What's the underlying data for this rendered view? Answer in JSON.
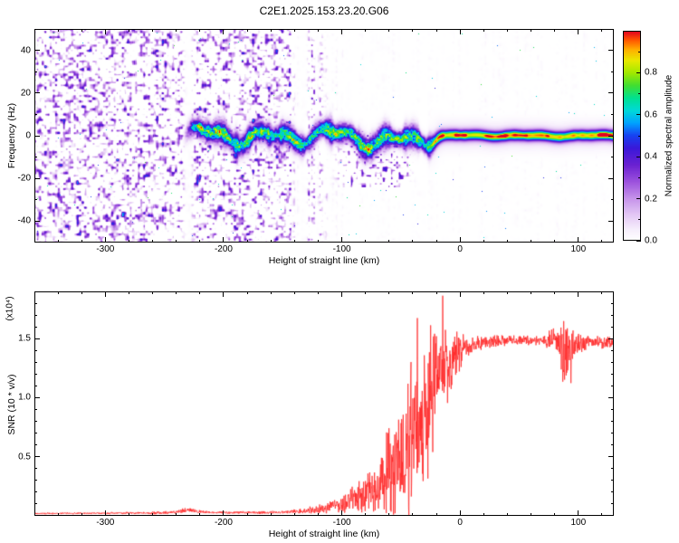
{
  "colors": {
    "background": "#ffffff",
    "frame": "#000000",
    "snr_line": "#ff2a2a",
    "colormap_stops": [
      [
        0.0,
        "#ffffff"
      ],
      [
        0.05,
        "#f7effc"
      ],
      [
        0.12,
        "#e4c9f5"
      ],
      [
        0.2,
        "#c693ea"
      ],
      [
        0.28,
        "#9c51dd"
      ],
      [
        0.36,
        "#6b21d1"
      ],
      [
        0.44,
        "#3a18d9"
      ],
      [
        0.5,
        "#1841f1"
      ],
      [
        0.56,
        "#00a1ff"
      ],
      [
        0.62,
        "#00d9d9"
      ],
      [
        0.68,
        "#00e191"
      ],
      [
        0.74,
        "#41de31"
      ],
      [
        0.8,
        "#a1e900"
      ],
      [
        0.86,
        "#e9e900"
      ],
      [
        0.91,
        "#ffb100"
      ],
      [
        0.96,
        "#ff5100"
      ],
      [
        1.0,
        "#e10021"
      ]
    ]
  },
  "chart_data": [
    {
      "type": "heatmap",
      "title": "C2E1.2025.153.23.20.G06",
      "xlabel": "Height of straight line (km)",
      "ylabel": "Frequency (Hz)",
      "xlim": [
        -360,
        130
      ],
      "ylim": [
        -50,
        50
      ],
      "xticks": [
        -300,
        -200,
        -100,
        0,
        100
      ],
      "xtick_labels": [
        "-300",
        "-200",
        "-100",
        "0",
        "100"
      ],
      "xminor_step": 20,
      "yticks": [
        -40,
        -20,
        0,
        20,
        40
      ],
      "ytick_labels": [
        "-40",
        "-20",
        "0",
        "20",
        "40"
      ],
      "yminor_step": 10,
      "colorbar": {
        "label": "Normalized spectral amplitude",
        "range": [
          0,
          1
        ],
        "ticks": [
          0,
          0.2,
          0.4,
          0.6,
          0.8
        ],
        "tick_labels": [
          "0.0",
          "0.2",
          "0.4",
          "0.6",
          "0.8"
        ],
        "minor_step": 0.1
      },
      "content": {
        "description": "Dense purple speckle noise fills the panel left of about -100 km, fading out between -145 and -95 km with pale vertical gaps near -230 and -133 km. A coherent carrier near 0 Hz appears from about -236 km: blobby cyan/green/blue with red flecks and +/-5 Hz wiggle until about -30 km, then a thin bright green band with intermittent red core and a faint purple halo out to +130 km. Sparse speckle trails below the carrier between -110 and -40 km.",
        "noise_fade_km": [
          -145,
          -95
        ],
        "gaps_km": [
          [
            -232,
            -228
          ],
          [
            -137,
            -130
          ]
        ],
        "signal_start_km": -236,
        "signal_smooth_from_km": -30,
        "signal_center_hz": 0,
        "signal_wiggle_hz": 5,
        "trail_region": {
          "x_km": [
            -112,
            -36
          ],
          "f_hz": [
            -24,
            2
          ]
        }
      }
    },
    {
      "type": "line",
      "xlabel": "Height of straight line (km)",
      "ylabel": "SNR (10 * v/v)",
      "y_scale_note": "(x10⁴)",
      "xlim": [
        -360,
        130
      ],
      "ylim": [
        0,
        1.9
      ],
      "xticks": [
        -300,
        -200,
        -100,
        0,
        100
      ],
      "xtick_labels": [
        "-300",
        "-200",
        "-100",
        "0",
        "100"
      ],
      "xminor_step": 20,
      "yticks": [
        0.5,
        1.0,
        1.5
      ],
      "ytick_labels": [
        "0.5",
        "1.0",
        "1.5"
      ],
      "yminor_step": 0.1,
      "series": [
        {
          "name": "SNR",
          "color": "#ff2a2a",
          "anchors": [
            [
              -360,
              0.02,
              0.008
            ],
            [
              -300,
              0.022,
              0.008
            ],
            [
              -260,
              0.025,
              0.01
            ],
            [
              -240,
              0.03,
              0.015
            ],
            [
              -230,
              0.05,
              0.025
            ],
            [
              -222,
              0.035,
              0.015
            ],
            [
              -210,
              0.028,
              0.01
            ],
            [
              -180,
              0.028,
              0.01
            ],
            [
              -150,
              0.03,
              0.012
            ],
            [
              -135,
              0.04,
              0.02
            ],
            [
              -125,
              0.05,
              0.03
            ],
            [
              -115,
              0.06,
              0.04
            ],
            [
              -105,
              0.09,
              0.06
            ],
            [
              -95,
              0.12,
              0.09
            ],
            [
              -85,
              0.16,
              0.13
            ],
            [
              -75,
              0.22,
              0.18
            ],
            [
              -65,
              0.3,
              0.28
            ],
            [
              -55,
              0.42,
              0.38
            ],
            [
              -48,
              0.5,
              0.45
            ],
            [
              -40,
              0.6,
              0.55
            ],
            [
              -33,
              0.75,
              0.6
            ],
            [
              -25,
              0.95,
              0.55
            ],
            [
              -18,
              1.15,
              0.45
            ],
            [
              -10,
              1.3,
              0.3
            ],
            [
              -3,
              1.38,
              0.18
            ],
            [
              5,
              1.43,
              0.1
            ],
            [
              15,
              1.46,
              0.06
            ],
            [
              30,
              1.48,
              0.05
            ],
            [
              50,
              1.49,
              0.04
            ],
            [
              70,
              1.48,
              0.04
            ],
            [
              82,
              1.5,
              0.1
            ],
            [
              87,
              1.45,
              0.35
            ],
            [
              92,
              1.35,
              0.3
            ],
            [
              97,
              1.45,
              0.12
            ],
            [
              110,
              1.47,
              0.05
            ],
            [
              130,
              1.47,
              0.05
            ]
          ]
        }
      ]
    }
  ]
}
